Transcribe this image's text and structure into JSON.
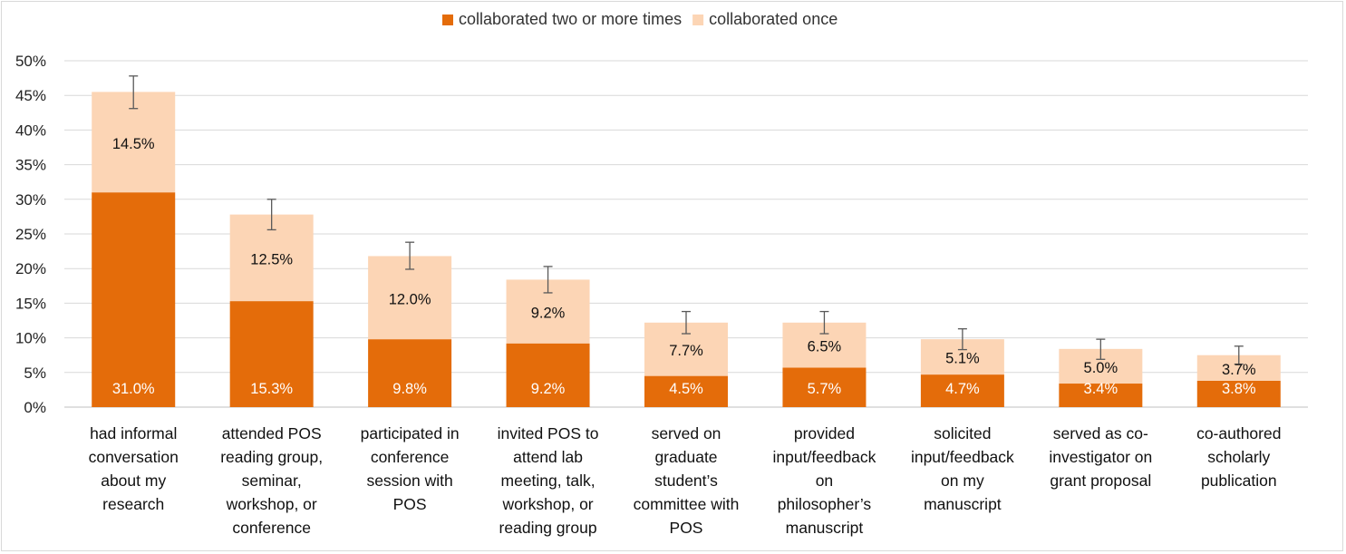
{
  "chart_data": {
    "type": "bar",
    "stacked": true,
    "legend_position": "top",
    "grid": true,
    "ylim": [
      0,
      50
    ],
    "yticks": [
      "0%",
      "5%",
      "10%",
      "15%",
      "20%",
      "25%",
      "30%",
      "35%",
      "40%",
      "45%",
      "50%"
    ],
    "categories": [
      [
        "had informal",
        "conversation",
        "about my",
        "research"
      ],
      [
        "attended POS",
        "reading group,",
        "seminar,",
        "workshop, or",
        "conference"
      ],
      [
        "participated in",
        "conference",
        "session with",
        "POS"
      ],
      [
        "invited POS to",
        "attend lab",
        "meeting, talk,",
        "workshop, or",
        "reading group"
      ],
      [
        "served on",
        "graduate",
        "student’s",
        "committee with",
        "POS"
      ],
      [
        "provided",
        "input/feedback",
        "on",
        "philosopher’s",
        "manuscript"
      ],
      [
        "solicited",
        "input/feedback",
        "on my",
        "manuscript"
      ],
      [
        "served as co-",
        "investigator on",
        "grant proposal"
      ],
      [
        "co-authored",
        "scholarly",
        "publication"
      ]
    ],
    "series": [
      {
        "name": "collaborated two or more times",
        "color": "#e46c0a",
        "values": [
          31.0,
          15.3,
          9.8,
          9.2,
          4.5,
          5.7,
          4.7,
          3.4,
          3.8
        ],
        "labels": [
          "31.0%",
          "15.3%",
          "9.8%",
          "9.2%",
          "4.5%",
          "5.7%",
          "4.7%",
          "3.4%",
          "3.8%"
        ]
      },
      {
        "name": "collaborated once",
        "color": "#fcd5b5",
        "values": [
          14.5,
          12.5,
          12.0,
          9.2,
          7.7,
          6.5,
          5.1,
          5.0,
          3.7
        ],
        "labels": [
          "14.5%",
          "12.5%",
          "12.0%",
          "9.2%",
          "7.7%",
          "6.5%",
          "5.1%",
          "5.0%",
          "3.7%"
        ]
      }
    ],
    "error_bars": {
      "low": [
        43.1,
        25.6,
        19.9,
        16.5,
        10.6,
        10.6,
        8.3,
        6.9,
        6.2
      ],
      "high": [
        47.8,
        30.0,
        23.8,
        20.3,
        13.8,
        13.8,
        11.3,
        9.8,
        8.8
      ],
      "color": "#595959"
    },
    "gridline_color": "#d9d9d9",
    "axis_color": "#bfbfbf"
  }
}
